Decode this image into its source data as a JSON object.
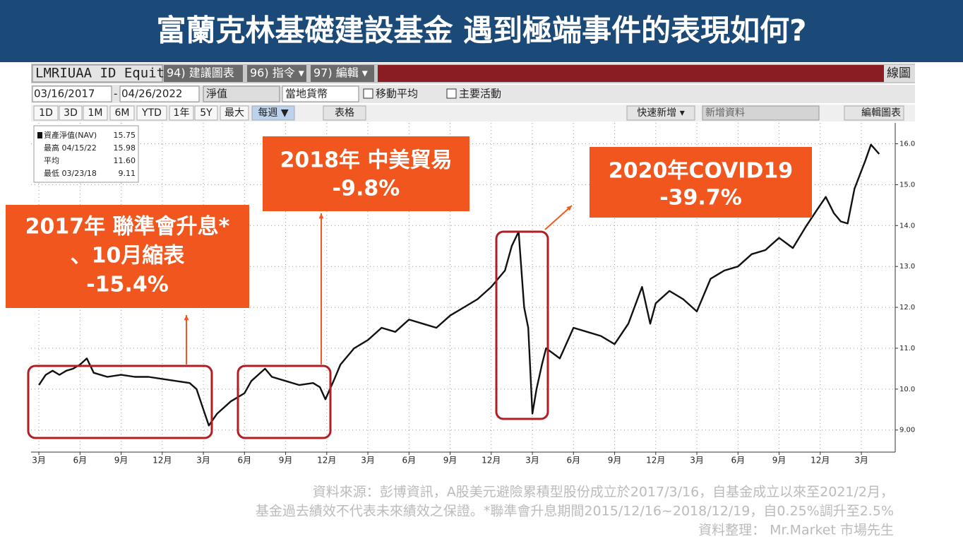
{
  "header": {
    "title": "富蘭克林基礎建設基金  遇到極端事件的表現如何?"
  },
  "toolbar": {
    "ticker": "LMRIUAA ID Equity",
    "buttons": [
      "94) 建議圖表",
      "96) 指令 ▾",
      "97) 編輯 ▾"
    ],
    "right": "線圖",
    "start_date": "03/16/2017",
    "end_date": "04/26/2022",
    "field": "淨值",
    "currency": "當地貨幣",
    "options": [
      "移動平均",
      "主要活動"
    ],
    "periods": [
      "1D",
      "3D",
      "1M",
      "6M",
      "YTD",
      "1年",
      "5Y",
      "最大",
      "每週 ▼"
    ],
    "table": "表格",
    "quick_add": "快速新增 ▾",
    "new_data": "新增資料",
    "edit_chart": "編輯圖表"
  },
  "chart_data": {
    "type": "line",
    "color": "#111111",
    "grid": true,
    "x": [
      0,
      0.5,
      1,
      1.5,
      2,
      2.5,
      3,
      3.5,
      4,
      5,
      6,
      7,
      8,
      9,
      10,
      11,
      11.5,
      12,
      12.4,
      13,
      14,
      15,
      15.5,
      16,
      16.5,
      17,
      18,
      19,
      20,
      20.5,
      20.9,
      21.5,
      22,
      23,
      24,
      25,
      26,
      27,
      28,
      29,
      30,
      31,
      32,
      33,
      34,
      34.5,
      35,
      35.4,
      35.7,
      36,
      36.3,
      36.7,
      37,
      38,
      39,
      40,
      41,
      42,
      43,
      44,
      44.6,
      45,
      46,
      47,
      48,
      49,
      50,
      51,
      52,
      53,
      54,
      55,
      56,
      56.8,
      57.4,
      58,
      58.5,
      59,
      59.5,
      60.3,
      60.7,
      61.3
    ],
    "values": [
      10.1,
      10.35,
      10.45,
      10.35,
      10.45,
      10.5,
      10.6,
      10.75,
      10.4,
      10.3,
      10.35,
      10.3,
      10.3,
      10.25,
      10.2,
      10.15,
      10.0,
      9.5,
      9.11,
      9.4,
      9.7,
      9.9,
      10.2,
      10.35,
      10.5,
      10.3,
      10.2,
      10.1,
      10.15,
      10.05,
      9.75,
      10.2,
      10.6,
      11.0,
      11.2,
      11.5,
      11.4,
      11.7,
      11.6,
      11.5,
      11.8,
      12.0,
      12.2,
      12.5,
      12.9,
      13.5,
      13.85,
      12.0,
      11.5,
      9.4,
      10.0,
      10.6,
      11.0,
      10.75,
      11.5,
      11.4,
      11.3,
      11.1,
      11.6,
      12.5,
      11.6,
      12.1,
      12.4,
      12.2,
      11.9,
      12.7,
      12.9,
      13.0,
      13.3,
      13.4,
      13.7,
      13.45,
      14.0,
      14.4,
      14.7,
      14.3,
      14.1,
      14.05,
      14.9,
      15.6,
      15.98,
      15.75
    ],
    "xlim": [
      -0.57,
      62.47
    ],
    "ylim": [
      8.46,
      16.51
    ],
    "xticks": [
      {
        "value": 0,
        "label": "3月"
      },
      {
        "value": 3,
        "label": "6月"
      },
      {
        "value": 6,
        "label": "9月"
      },
      {
        "value": 9,
        "label": "12月"
      },
      {
        "value": 12,
        "label": "3月"
      },
      {
        "value": 15,
        "label": "6月"
      },
      {
        "value": 18,
        "label": "9月"
      },
      {
        "value": 21,
        "label": "12月"
      },
      {
        "value": 24,
        "label": "3月"
      },
      {
        "value": 27,
        "label": "6月"
      },
      {
        "value": 30,
        "label": "9月"
      },
      {
        "value": 33,
        "label": "12月"
      },
      {
        "value": 36,
        "label": "3月"
      },
      {
        "value": 39,
        "label": "6月"
      },
      {
        "value": 42,
        "label": "9月"
      },
      {
        "value": 45,
        "label": "12月"
      },
      {
        "value": 48,
        "label": "3月"
      },
      {
        "value": 51,
        "label": "6月"
      },
      {
        "value": 54,
        "label": "9月"
      },
      {
        "value": 57,
        "label": "12月"
      },
      {
        "value": 60,
        "label": "3月"
      }
    ],
    "yticks": [
      {
        "value": 9,
        "label": "9.00"
      },
      {
        "value": 10,
        "label": "10.0"
      },
      {
        "value": 11,
        "label": "11.0"
      },
      {
        "value": 12,
        "label": "12.0"
      },
      {
        "value": 13,
        "label": "13.0"
      },
      {
        "value": 14,
        "label": "14.0"
      },
      {
        "value": 15,
        "label": "15.0"
      },
      {
        "value": 16,
        "label": "16.0"
      }
    ],
    "legend": [
      {
        "label": "資產淨值(NAV)",
        "value": "15.75"
      },
      {
        "label": "最高 04/15/22",
        "value": "15.98"
      },
      {
        "label": "平均",
        "value": "11.60"
      },
      {
        "label": "最低 03/23/18",
        "value": "9.11"
      }
    ],
    "annotations": [
      {
        "lines": [
          "2017年 聯準會升息*",
          "、10月縮表",
          "-15.4%"
        ]
      },
      {
        "lines": [
          "2018年 中美貿易",
          "-9.8%"
        ]
      },
      {
        "lines": [
          "2020年COVID19",
          "-39.7%"
        ]
      }
    ]
  },
  "notes": [
    "資料來源：彭博資訊，A股美元避險累積型股份成立於2017/3/16，自基金成立以來至2021/2月，",
    "基金過去績效不代表未來績效之保證。*聯準會升息期間2015/12/16~2018/12/19，自0.25%調升至2.5%",
    "資料整理： Mr.Market 市場先生"
  ]
}
